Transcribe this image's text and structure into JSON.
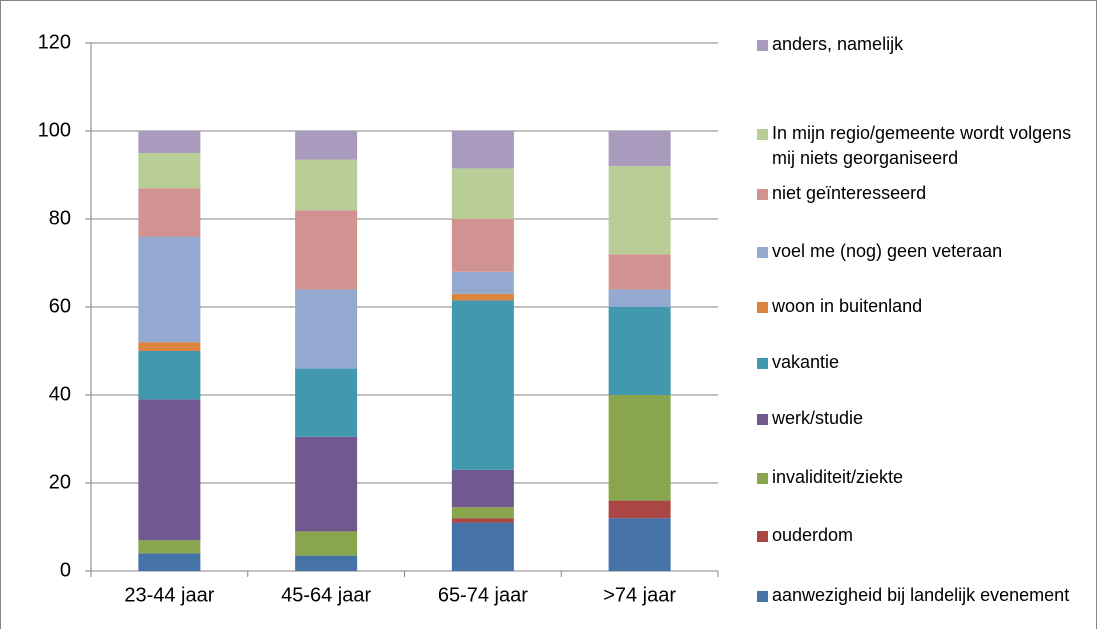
{
  "chart_data": {
    "type": "stacked_bar",
    "categories": [
      "23-44 jaar",
      "45-64 jaar",
      "65-74 jaar",
      ">74 jaar"
    ],
    "series": [
      {
        "name": "aanwezigheid bij landelijk evenement",
        "color": "#4572a7",
        "values": [
          4,
          3.5,
          11,
          12
        ]
      },
      {
        "name": "ouderdom",
        "color": "#aa4643",
        "values": [
          0,
          0,
          1,
          4
        ]
      },
      {
        "name": "invaliditeit/ziekte",
        "color": "#89a54e",
        "values": [
          3,
          5.5,
          2.5,
          24
        ]
      },
      {
        "name": "werk/studie",
        "color": "#71588f",
        "values": [
          32,
          21.5,
          8.5,
          0
        ]
      },
      {
        "name": "vakantie",
        "color": "#4198af",
        "values": [
          11,
          15.5,
          38.5,
          20
        ]
      },
      {
        "name": "woon in buitenland",
        "color": "#db843d",
        "values": [
          2,
          0,
          1.5,
          0
        ]
      },
      {
        "name": "voel me (nog) geen veteraan",
        "color": "#93a9cf",
        "values": [
          24,
          18,
          5,
          4
        ]
      },
      {
        "name": "niet geïnteresseerd",
        "color": "#d19392",
        "values": [
          11,
          18,
          12,
          8
        ]
      },
      {
        "name": "In mijn regio/gemeente wordt volgens mij niets georganiseerd",
        "color": "#b9cd96",
        "values": [
          8,
          11.5,
          11.5,
          20
        ]
      },
      {
        "name": "anders, namelijk",
        "color": "#a99bbd",
        "values": [
          5,
          6.5,
          8.5,
          8
        ]
      }
    ],
    "ylim": [
      0,
      120
    ],
    "yticks": [
      0,
      20,
      40,
      60,
      80,
      100,
      120
    ],
    "grid": true,
    "legend": "right"
  }
}
